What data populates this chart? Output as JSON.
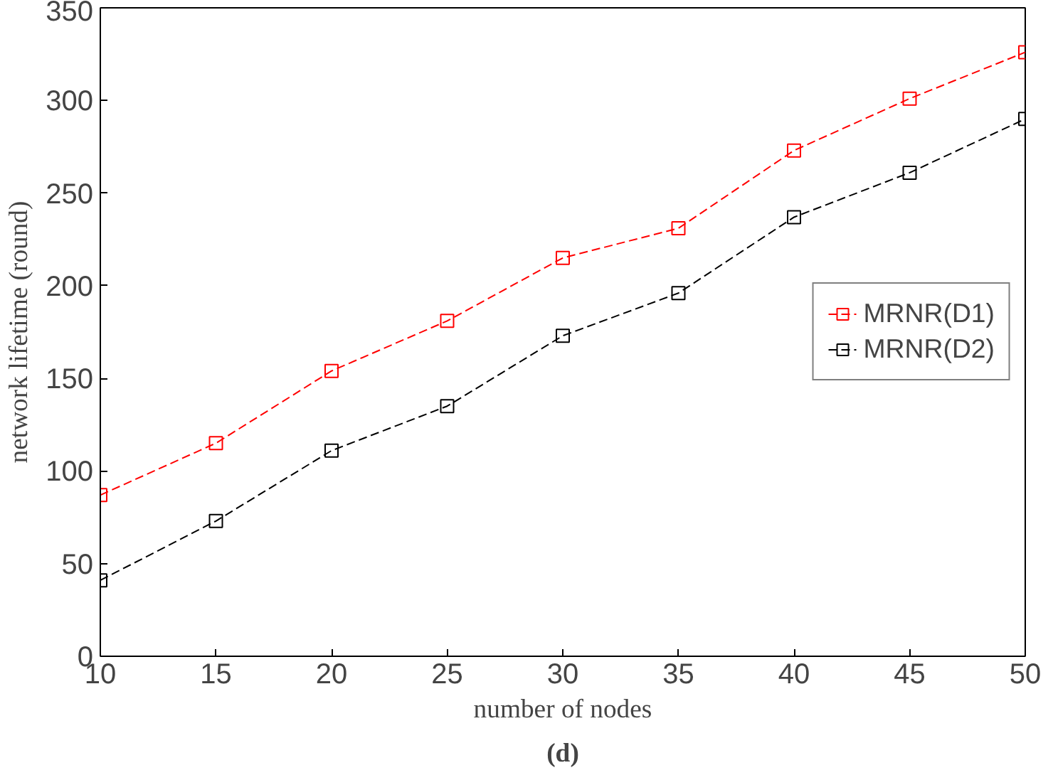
{
  "chart_data": {
    "type": "line",
    "xlabel": "number of nodes",
    "ylabel": "network lifetime (round)",
    "x": [
      10,
      15,
      20,
      25,
      30,
      35,
      40,
      45,
      50
    ],
    "series": [
      {
        "name": "MRNR(D1)",
        "color": "#ff0000",
        "values": [
          87,
          115,
          154,
          181,
          215,
          231,
          273,
          301,
          326
        ]
      },
      {
        "name": "MRNR(D2)",
        "color": "#000000",
        "values": [
          41,
          73,
          111,
          135,
          173,
          196,
          237,
          261,
          290
        ]
      }
    ],
    "xlim": [
      10,
      50
    ],
    "xticks": [
      10,
      15,
      20,
      25,
      30,
      35,
      40,
      45,
      50
    ],
    "ylim": [
      0,
      350
    ],
    "yticks": [
      0,
      50,
      100,
      150,
      200,
      250,
      300,
      350
    ],
    "grid": false,
    "legend": "right",
    "marker": "square",
    "line_style": "dashed",
    "annotations": [
      "(d)"
    ]
  }
}
